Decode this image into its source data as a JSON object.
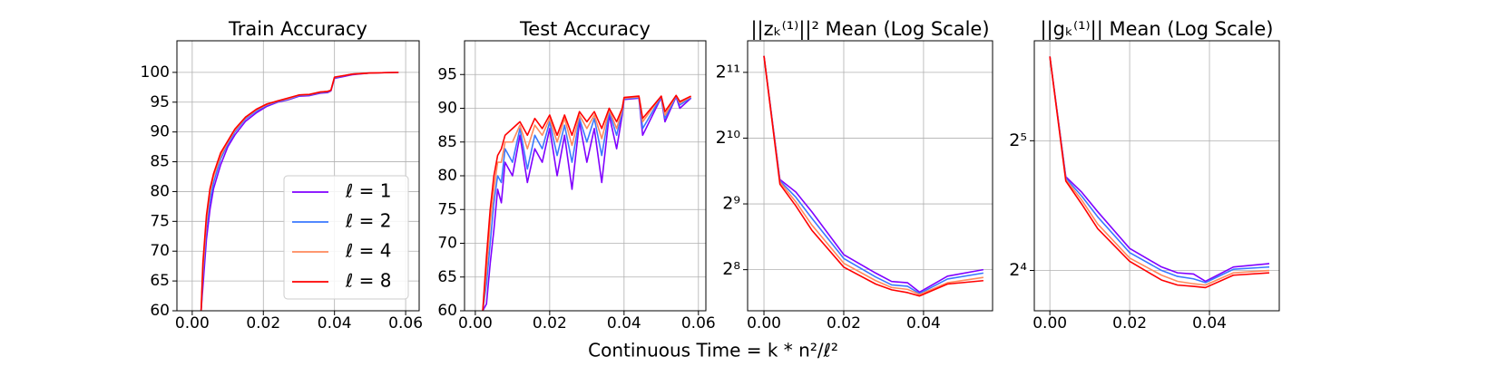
{
  "xlabel": "Continuous Time = k * n²/ℓ²",
  "chart_data": [
    {
      "type": "line",
      "title": "Train Accuracy",
      "x": [
        0.0025,
        0.003,
        0.004,
        0.005,
        0.006,
        0.008,
        0.01,
        0.012,
        0.015,
        0.018,
        0.021,
        0.024,
        0.027,
        0.03,
        0.033,
        0.036,
        0.038,
        0.039,
        0.04,
        0.045,
        0.05,
        0.058
      ],
      "series": [
        {
          "name": "ℓ = 1",
          "color": "#8000ff",
          "values": [
            60,
            64,
            72,
            77,
            80.5,
            84.5,
            87.5,
            89.5,
            91.8,
            93.2,
            94.3,
            95,
            95.4,
            96,
            96.1,
            96.5,
            96.6,
            96.9,
            99,
            99.6,
            99.9,
            100
          ]
        },
        {
          "name": "ℓ = 2",
          "color": "#3a78ff",
          "values": [
            60,
            66,
            74,
            78.5,
            81.5,
            85.5,
            88,
            90,
            92.2,
            93.5,
            94.5,
            95.1,
            95.5,
            96.1,
            96.2,
            96.6,
            96.7,
            97,
            99.1,
            99.7,
            99.9,
            100
          ]
        },
        {
          "name": "ℓ = 4",
          "color": "#ff8a5c",
          "values": [
            60,
            67,
            75,
            80,
            82.5,
            86,
            88.3,
            90.3,
            92.4,
            93.7,
            94.6,
            95.2,
            95.6,
            96.2,
            96.3,
            96.7,
            96.8,
            97,
            99.2,
            99.7,
            99.9,
            100
          ]
        },
        {
          "name": "ℓ = 8",
          "color": "#ff0000",
          "values": [
            60,
            68,
            76,
            80.5,
            83,
            86.5,
            88.5,
            90.5,
            92.5,
            93.8,
            94.7,
            95.2,
            95.7,
            96.2,
            96.3,
            96.7,
            96.8,
            97,
            99.2,
            99.7,
            99.9,
            100
          ]
        }
      ],
      "xlim": [
        -0.0043,
        0.0638
      ],
      "xticks": [
        {
          "value": 0,
          "label": "0.00"
        },
        {
          "value": 0.02,
          "label": "0.02"
        },
        {
          "value": 0.04,
          "label": "0.04"
        },
        {
          "value": 0.06,
          "label": "0.06"
        }
      ],
      "ylim": [
        60,
        105.3
      ],
      "yticks": [
        60,
        65,
        70,
        75,
        80,
        85,
        90,
        95,
        100
      ],
      "grid": true,
      "legend": "lower right"
    },
    {
      "type": "line",
      "title": "Test Accuracy",
      "x": [
        0.002,
        0.003,
        0.004,
        0.005,
        0.006,
        0.007,
        0.008,
        0.01,
        0.012,
        0.014,
        0.016,
        0.018,
        0.02,
        0.022,
        0.024,
        0.026,
        0.028,
        0.03,
        0.032,
        0.034,
        0.036,
        0.038,
        0.0395,
        0.04,
        0.044,
        0.045,
        0.05,
        0.051,
        0.054,
        0.055,
        0.058
      ],
      "series": [
        {
          "color": "#8000ff",
          "values": [
            60,
            61,
            67,
            72,
            78,
            76,
            82,
            80,
            86,
            79,
            84,
            82,
            87,
            80,
            86,
            78,
            88,
            82,
            87,
            79,
            89,
            84,
            89,
            91.3,
            91.5,
            86,
            91.6,
            88,
            91.7,
            90,
            91.5
          ]
        },
        {
          "color": "#3a78ff",
          "values": [
            60,
            64,
            70,
            76,
            80,
            79,
            84,
            82,
            87,
            81,
            86,
            84,
            88,
            83,
            87.5,
            82,
            88.5,
            85,
            88.5,
            83,
            89.5,
            86,
            89.5,
            91.4,
            91.6,
            87,
            91.7,
            88.5,
            91.8,
            90.5,
            91.6
          ]
        },
        {
          "color": "#ff8a5c",
          "values": [
            60,
            66,
            73,
            78,
            82,
            82,
            85,
            85,
            87.5,
            84,
            87.5,
            86,
            88.5,
            85,
            88.5,
            84.5,
            89,
            87,
            89,
            85.5,
            89.8,
            87,
            89.8,
            91.5,
            91.7,
            88,
            91.8,
            89,
            91.9,
            90.8,
            91.7
          ]
        },
        {
          "color": "#ff0000",
          "values": [
            60,
            68,
            75,
            80,
            83,
            84,
            86,
            87,
            88,
            86,
            88.5,
            87,
            89,
            86,
            89,
            86,
            89.5,
            88,
            89.5,
            87,
            90,
            88,
            90,
            91.6,
            91.8,
            88.5,
            91.8,
            89.5,
            91.9,
            91,
            91.8
          ]
        }
      ],
      "xlim": [
        -0.0029,
        0.062
      ],
      "xticks": [
        {
          "value": 0,
          "label": "0.00"
        },
        {
          "value": 0.02,
          "label": "0.02"
        },
        {
          "value": 0.04,
          "label": "0.04"
        },
        {
          "value": 0.06,
          "label": "0.06"
        }
      ],
      "ylim": [
        60,
        100
      ],
      "yticks": [
        60,
        65,
        70,
        75,
        80,
        85,
        90,
        95
      ],
      "grid": true
    },
    {
      "type": "line",
      "title": "||zₖ⁽¹⁾||² Mean (Log Scale)",
      "x": [
        0,
        0.004,
        0.008,
        0.012,
        0.02,
        0.028,
        0.032,
        0.036,
        0.039,
        0.046,
        0.055
      ],
      "series": [
        {
          "color": "#8000ff",
          "values": [
            2435,
            662,
            580,
            471,
            300,
            247,
            226,
            223,
            202,
            239,
            256
          ]
        },
        {
          "color": "#3a78ff",
          "values": [
            2435,
            653,
            549,
            440,
            288,
            237,
            218,
            215,
            199,
            232,
            247
          ]
        },
        {
          "color": "#ff8a5c",
          "values": [
            2435,
            644,
            523,
            410,
            274,
            228,
            212,
            208,
            197,
            223,
            236
          ]
        },
        {
          "color": "#ff0000",
          "values": [
            2435,
            630,
            501,
            388,
            263,
            220,
            207,
            201,
            194,
            220,
            228
          ]
        }
      ],
      "xlim": [
        -0.0041,
        0.0573
      ],
      "xticks": [
        {
          "value": 0,
          "label": "0.00"
        },
        {
          "value": 0.02,
          "label": "0.02"
        },
        {
          "value": 0.04,
          "label": "0.04"
        }
      ],
      "ylim": [
        166,
        2857
      ],
      "yscale": "log",
      "logbase": 2,
      "yticks": [
        {
          "value": 256,
          "label": "2⁸"
        },
        {
          "value": 512,
          "label": "2⁹"
        },
        {
          "value": 1024,
          "label": "2¹⁰"
        },
        {
          "value": 2048,
          "label": "2¹¹"
        }
      ],
      "grid": true
    },
    {
      "type": "line",
      "title": "||gₖ⁽¹⁾|| Mean (Log Scale)",
      "x": [
        0,
        0.004,
        0.008,
        0.012,
        0.02,
        0.028,
        0.032,
        0.036,
        0.039,
        0.046,
        0.055
      ],
      "series": [
        {
          "color": "#8000ff",
          "values": [
            50.2,
            26.4,
            24.3,
            21.9,
            18.0,
            16.3,
            15.8,
            15.7,
            15.1,
            16.3,
            16.6
          ]
        },
        {
          "color": "#3a78ff",
          "values": [
            50.2,
            26.2,
            23.8,
            21.3,
            17.6,
            16.0,
            15.5,
            15.3,
            15.0,
            16.1,
            16.3
          ]
        },
        {
          "color": "#ff8a5c",
          "values": [
            50.2,
            26.0,
            23.3,
            20.5,
            17.1,
            15.6,
            15.1,
            14.9,
            14.8,
            15.8,
            16.0
          ]
        },
        {
          "color": "#ff0000",
          "values": [
            50.2,
            25.8,
            22.8,
            20.0,
            16.8,
            15.2,
            14.8,
            14.7,
            14.6,
            15.6,
            15.8
          ]
        }
      ],
      "xlim": [
        -0.0039,
        0.0575
      ],
      "xticks": [
        {
          "value": 0,
          "label": "0.00"
        },
        {
          "value": 0.02,
          "label": "0.02"
        },
        {
          "value": 0.04,
          "label": "0.04"
        }
      ],
      "ylim": [
        12.9,
        54.6
      ],
      "yscale": "log",
      "logbase": 2,
      "yticks": [
        {
          "value": 16,
          "label": "2⁴"
        },
        {
          "value": 32,
          "label": "2⁵"
        }
      ],
      "grid": true
    }
  ]
}
